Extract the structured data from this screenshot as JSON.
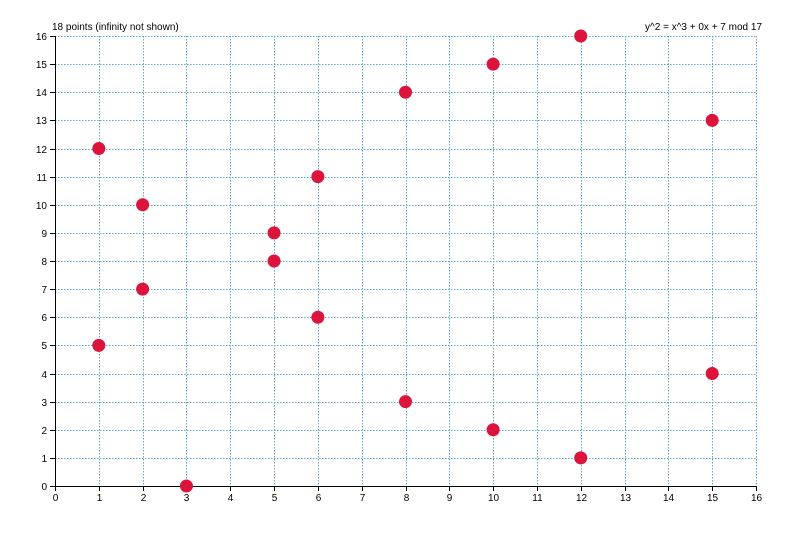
{
  "header": {
    "points_label": "18 points (infinity not shown)",
    "equation_label": "y^2 = x^3 + 0x + 7 mod 17"
  },
  "chart_data": {
    "type": "scatter",
    "title": "",
    "xlabel": "",
    "ylabel": "",
    "xlim": [
      0,
      16
    ],
    "ylim": [
      0,
      16
    ],
    "xticks": [
      0,
      1,
      2,
      3,
      4,
      5,
      6,
      7,
      8,
      9,
      10,
      11,
      12,
      13,
      14,
      15,
      16
    ],
    "yticks": [
      0,
      1,
      2,
      3,
      4,
      5,
      6,
      7,
      8,
      9,
      10,
      11,
      12,
      13,
      14,
      15,
      16
    ],
    "grid": true,
    "point_color": "#dc143c",
    "grid_color": "#5fa8d3",
    "points": [
      {
        "x": 1,
        "y": 5
      },
      {
        "x": 1,
        "y": 12
      },
      {
        "x": 2,
        "y": 7
      },
      {
        "x": 2,
        "y": 10
      },
      {
        "x": 3,
        "y": 0
      },
      {
        "x": 5,
        "y": 8
      },
      {
        "x": 5,
        "y": 9
      },
      {
        "x": 6,
        "y": 6
      },
      {
        "x": 6,
        "y": 11
      },
      {
        "x": 8,
        "y": 3
      },
      {
        "x": 8,
        "y": 14
      },
      {
        "x": 10,
        "y": 2
      },
      {
        "x": 10,
        "y": 15
      },
      {
        "x": 12,
        "y": 1
      },
      {
        "x": 12,
        "y": 16
      },
      {
        "x": 15,
        "y": 4
      },
      {
        "x": 15,
        "y": 13
      }
    ]
  }
}
